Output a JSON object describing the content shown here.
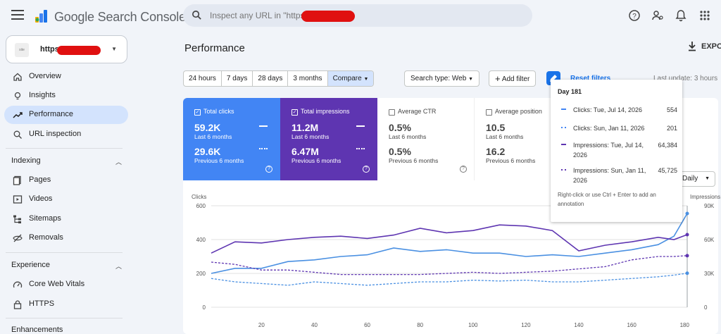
{
  "app": {
    "name": "Google Search Console"
  },
  "search": {
    "placeholder": "Inspect any URL in \"https:"
  },
  "sidebar": {
    "property": "https",
    "items": [
      {
        "label": "Overview",
        "icon": "home-icon"
      },
      {
        "label": "Insights",
        "icon": "lightbulb-icon"
      },
      {
        "label": "Performance",
        "icon": "trending-up-icon"
      },
      {
        "label": "URL inspection",
        "icon": "search-icon"
      }
    ],
    "sections": [
      {
        "title": "Indexing",
        "items": [
          {
            "label": "Pages",
            "icon": "pages-icon"
          },
          {
            "label": "Videos",
            "icon": "video-icon"
          },
          {
            "label": "Sitemaps",
            "icon": "sitemap-icon"
          },
          {
            "label": "Removals",
            "icon": "removals-icon"
          }
        ]
      },
      {
        "title": "Experience",
        "items": [
          {
            "label": "Core Web Vitals",
            "icon": "speed-icon"
          },
          {
            "label": "HTTPS",
            "icon": "lock-icon"
          }
        ]
      },
      {
        "title": "Enhancements",
        "items": []
      }
    ]
  },
  "header": {
    "title": "Performance",
    "export": "EXPO"
  },
  "filters": {
    "ranges": [
      "24 hours",
      "7 days",
      "28 days",
      "3 months",
      "Compare"
    ],
    "search_type": "Search type: Web",
    "add_filter": "Add filter",
    "reset": "Reset filters",
    "last_update": "Last update: 3 hours"
  },
  "metrics": [
    {
      "label": "Total clicks",
      "v1": "59.2K",
      "l1": "Last 6 months",
      "v2": "29.6K",
      "l2": "Previous 6 months"
    },
    {
      "label": "Total impressions",
      "v1": "11.2M",
      "l1": "Last 6 months",
      "v2": "6.47M",
      "l2": "Previous 6 months"
    },
    {
      "label": "Average CTR",
      "v1": "0.5%",
      "l1": "Last 6 months",
      "v2": "0.5%",
      "l2": "Previous 6 months"
    },
    {
      "label": "Average position",
      "v1": "10.5",
      "l1": "Last 6 months",
      "v2": "16.2",
      "l2": "Previous 6 months"
    }
  ],
  "granularity": "Daily",
  "tooltip": {
    "day": "Day 181",
    "rows": [
      {
        "label": "Clicks: Tue, Jul 14, 2026",
        "value": "554"
      },
      {
        "label": "Clicks: Sun, Jan 11, 2026",
        "value": "201"
      },
      {
        "label": "Impressions: Tue, Jul 14, 2026",
        "value": "64,384"
      },
      {
        "label": "Impressions: Sun, Jan 11, 2026",
        "value": "45,725"
      }
    ],
    "note": "Right-click or use Ctrl + Enter to add an annotation"
  },
  "colors": {
    "clicks": "#4285f4",
    "impressions": "#5e35b1",
    "accent": "#1a73e8"
  },
  "chart_data": {
    "type": "line",
    "ylabel": "Clicks",
    "y2label": "Impressions",
    "ylim": [
      0,
      600
    ],
    "y2lim": [
      0,
      90000
    ],
    "yticks": [
      "600",
      "400",
      "200",
      "0"
    ],
    "y2ticks": [
      "90K",
      "60K",
      "30K",
      "0"
    ],
    "xticks": [
      20,
      40,
      60,
      80,
      100,
      120,
      140,
      160,
      180
    ],
    "xlim": [
      1,
      181
    ],
    "grid": true,
    "series": [
      {
        "name": "Clicks: Last 6 months",
        "axis": "left",
        "style": "solid",
        "color": "#4a90e2",
        "points": [
          [
            1,
            200
          ],
          [
            10,
            230
          ],
          [
            20,
            230
          ],
          [
            30,
            270
          ],
          [
            40,
            280
          ],
          [
            50,
            300
          ],
          [
            60,
            310
          ],
          [
            70,
            350
          ],
          [
            80,
            330
          ],
          [
            90,
            340
          ],
          [
            100,
            320
          ],
          [
            110,
            320
          ],
          [
            120,
            300
          ],
          [
            130,
            310
          ],
          [
            140,
            300
          ],
          [
            150,
            320
          ],
          [
            160,
            340
          ],
          [
            170,
            370
          ],
          [
            176,
            420
          ],
          [
            181,
            554
          ]
        ]
      },
      {
        "name": "Impressions: Last 6 months",
        "axis": "right",
        "style": "solid",
        "color": "#5e35b1",
        "points": [
          [
            1,
            48000
          ],
          [
            10,
            58000
          ],
          [
            20,
            57000
          ],
          [
            30,
            60000
          ],
          [
            40,
            62000
          ],
          [
            50,
            63000
          ],
          [
            60,
            61000
          ],
          [
            70,
            64000
          ],
          [
            80,
            70000
          ],
          [
            90,
            66000
          ],
          [
            100,
            68000
          ],
          [
            110,
            73000
          ],
          [
            120,
            72000
          ],
          [
            130,
            68000
          ],
          [
            140,
            50000
          ],
          [
            150,
            55000
          ],
          [
            160,
            58000
          ],
          [
            170,
            62000
          ],
          [
            176,
            60000
          ],
          [
            181,
            64384
          ]
        ]
      },
      {
        "name": "Clicks: Previous 6 months",
        "axis": "left",
        "style": "dashed",
        "color": "#4a90e2",
        "points": [
          [
            1,
            170
          ],
          [
            10,
            150
          ],
          [
            20,
            140
          ],
          [
            30,
            130
          ],
          [
            40,
            150
          ],
          [
            50,
            140
          ],
          [
            60,
            130
          ],
          [
            70,
            140
          ],
          [
            80,
            150
          ],
          [
            90,
            150
          ],
          [
            100,
            160
          ],
          [
            110,
            155
          ],
          [
            120,
            160
          ],
          [
            130,
            150
          ],
          [
            140,
            150
          ],
          [
            150,
            160
          ],
          [
            160,
            170
          ],
          [
            170,
            180
          ],
          [
            176,
            190
          ],
          [
            181,
            201
          ]
        ]
      },
      {
        "name": "Impressions: Previous 6 months",
        "axis": "right",
        "style": "dashed",
        "color": "#5e35b1",
        "points": [
          [
            1,
            40000
          ],
          [
            10,
            38000
          ],
          [
            20,
            33000
          ],
          [
            30,
            33000
          ],
          [
            40,
            31000
          ],
          [
            50,
            29000
          ],
          [
            60,
            29000
          ],
          [
            70,
            29000
          ],
          [
            80,
            29000
          ],
          [
            90,
            30000
          ],
          [
            100,
            31000
          ],
          [
            110,
            30000
          ],
          [
            120,
            31000
          ],
          [
            130,
            32000
          ],
          [
            140,
            34000
          ],
          [
            150,
            36000
          ],
          [
            160,
            42000
          ],
          [
            170,
            45000
          ],
          [
            176,
            45000
          ],
          [
            181,
            45725
          ]
        ]
      }
    ]
  }
}
